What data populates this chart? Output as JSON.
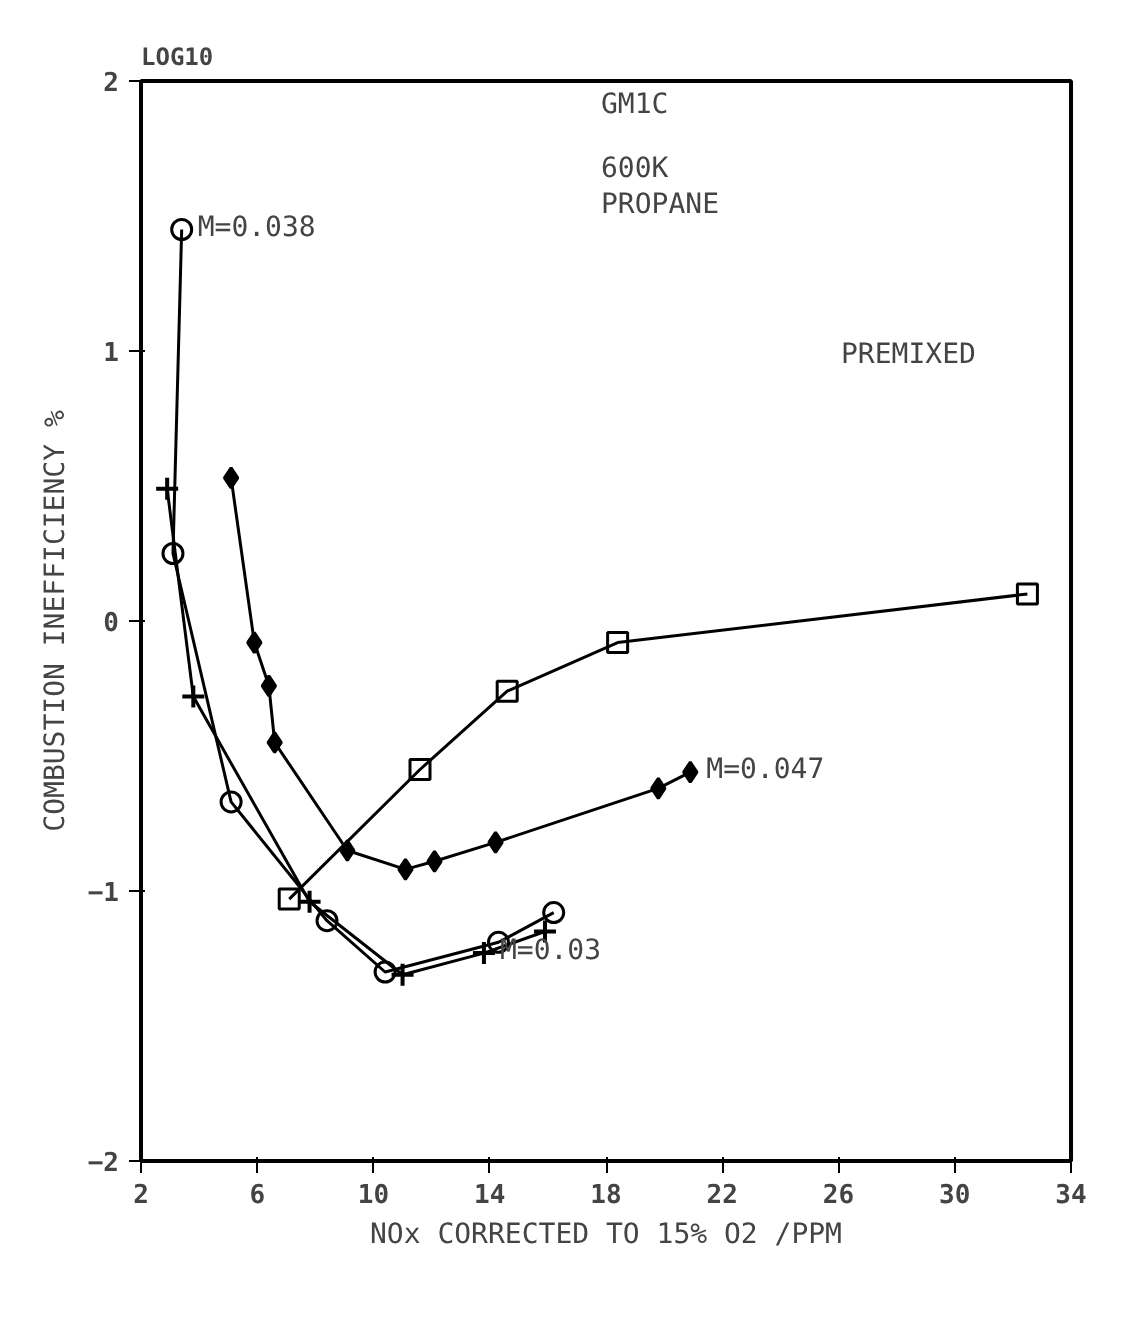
{
  "chart_data": {
    "type": "line",
    "ylabel": "COMBUSTION INEFFICIENCY %",
    "xlabel": "NOx CORRECTED TO 15% O2 /PPM",
    "subtitle": "LOG10",
    "xlim": [
      2,
      34
    ],
    "xticks": [
      2,
      6,
      10,
      14,
      18,
      22,
      26,
      30,
      34
    ],
    "ylim": [
      -2,
      2
    ],
    "yticks": [
      -2,
      -1,
      0,
      1,
      2
    ],
    "grid": false,
    "annotations": [
      "GM1C",
      "600K",
      "PROPANE",
      {
        "text": "M=0.038",
        "x": 3.4,
        "y": 1.45
      },
      "PREMIXED",
      {
        "text": "M=0.047",
        "x": 20.9,
        "y": -0.56
      },
      {
        "text": "M=0.03",
        "x": 13.8,
        "y": -1.23
      }
    ],
    "series": [
      {
        "color": "#000000",
        "marker": "square",
        "x": [
          7.1,
          11.6,
          14.6,
          18.4,
          32.5
        ],
        "values": [
          -1.03,
          -0.55,
          -0.26,
          -0.08,
          0.1
        ]
      },
      {
        "color": "#000000",
        "marker": "diamond",
        "x": [
          5.1,
          5.9,
          6.4,
          6.6,
          9.1,
          11.1,
          12.1,
          14.2,
          19.8,
          20.9
        ],
        "values": [
          0.53,
          -0.08,
          -0.24,
          -0.45,
          -0.85,
          -0.92,
          -0.89,
          -0.82,
          -0.62,
          -0.56
        ]
      },
      {
        "color": "#000000",
        "marker": "circle",
        "x": [
          3.4,
          3.1,
          5.1,
          8.4,
          10.4,
          14.3,
          16.2
        ],
        "values": [
          1.45,
          0.25,
          -0.67,
          -1.11,
          -1.3,
          -1.19,
          -1.08
        ]
      },
      {
        "color": "#000000",
        "marker": "cross",
        "x": [
          2.9,
          3.8,
          7.8,
          11.0,
          13.8,
          15.9
        ],
        "values": [
          0.49,
          -0.28,
          -1.04,
          -1.31,
          -1.23,
          -1.15
        ]
      }
    ]
  }
}
